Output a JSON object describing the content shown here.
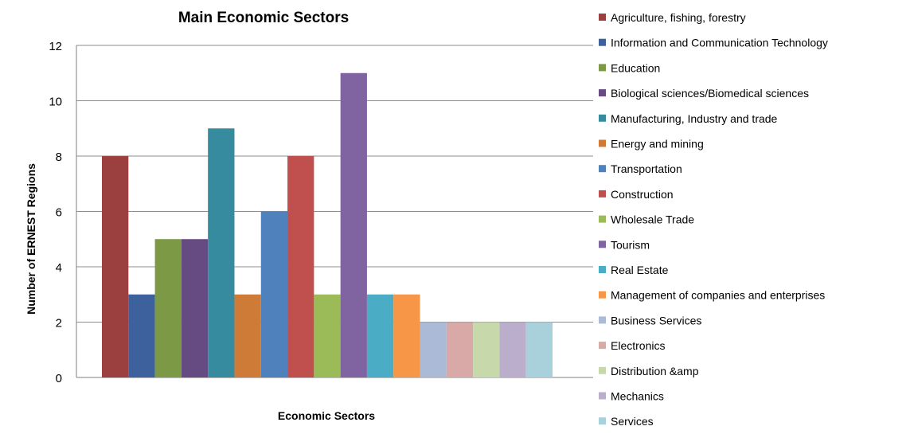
{
  "chart_data": {
    "type": "bar",
    "title": "Main Economic Sectors",
    "xlabel": "Economic Sectors",
    "ylabel": "Number of ERNEST Regions",
    "ylim": [
      0,
      12
    ],
    "yticks": [
      0,
      2,
      4,
      6,
      8,
      10,
      12
    ],
    "grid": true,
    "legend_position": "right",
    "series": [
      {
        "name": "Agriculture, fishing, forestry",
        "value": 8,
        "color": "#9c3f3f"
      },
      {
        "name": "Information and Communication Technology",
        "value": 3,
        "color": "#3d619c"
      },
      {
        "name": "Education",
        "value": 5,
        "color": "#7c9a46"
      },
      {
        "name": "Biological sciences/Biomedical sciences",
        "value": 5,
        "color": "#664a82"
      },
      {
        "name": "Manufacturing, Industry and trade",
        "value": 9,
        "color": "#378b9e"
      },
      {
        "name": "Energy and mining",
        "value": 3,
        "color": "#cf7b38"
      },
      {
        "name": "Transportation",
        "value": 6,
        "color": "#4f81bd"
      },
      {
        "name": "Construction",
        "value": 8,
        "color": "#c0504d"
      },
      {
        "name": "Wholesale Trade",
        "value": 3,
        "color": "#9bbb59"
      },
      {
        "name": "Tourism",
        "value": 11,
        "color": "#8064a2"
      },
      {
        "name": "Real Estate",
        "value": 3,
        "color": "#4bacc6"
      },
      {
        "name": "Management of companies and enterprises",
        "value": 3,
        "color": "#f79646"
      },
      {
        "name": "Business Services",
        "value": 2,
        "color": "#aabad7"
      },
      {
        "name": "Electronics",
        "value": 2,
        "color": "#d9a9a8"
      },
      {
        "name": "Distribution &amp",
        "value": 2,
        "color": "#c7d8ab"
      },
      {
        "name": "Mechanics",
        "value": 2,
        "color": "#bbaecc"
      },
      {
        "name": "Services",
        "value": 2,
        "color": "#a9d1dc"
      }
    ]
  }
}
